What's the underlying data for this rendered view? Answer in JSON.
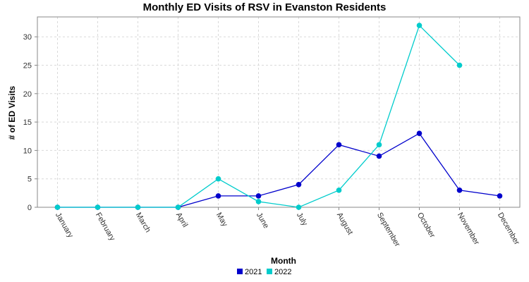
{
  "chart_data": {
    "type": "line",
    "title": "Monthly ED Visits of RSV in Evanston Residents",
    "xlabel": "Month",
    "ylabel": "# of ED Visits",
    "categories": [
      "January",
      "February",
      "March",
      "April",
      "May",
      "June",
      "July",
      "August",
      "September",
      "October",
      "November",
      "December"
    ],
    "ylim": [
      0,
      33.5
    ],
    "yticks": [
      0,
      5,
      10,
      15,
      20,
      25,
      30
    ],
    "grid": true,
    "legend_position": "bottom-center",
    "series": [
      {
        "name": "2021",
        "color": "#0000cc",
        "values": [
          0,
          0,
          0,
          0,
          2,
          2,
          4,
          11,
          9,
          13,
          3,
          2
        ]
      },
      {
        "name": "2022",
        "color": "#00cccc",
        "values": [
          0,
          0,
          0,
          0,
          5,
          1,
          0,
          3,
          11,
          32,
          25,
          null
        ]
      }
    ]
  }
}
